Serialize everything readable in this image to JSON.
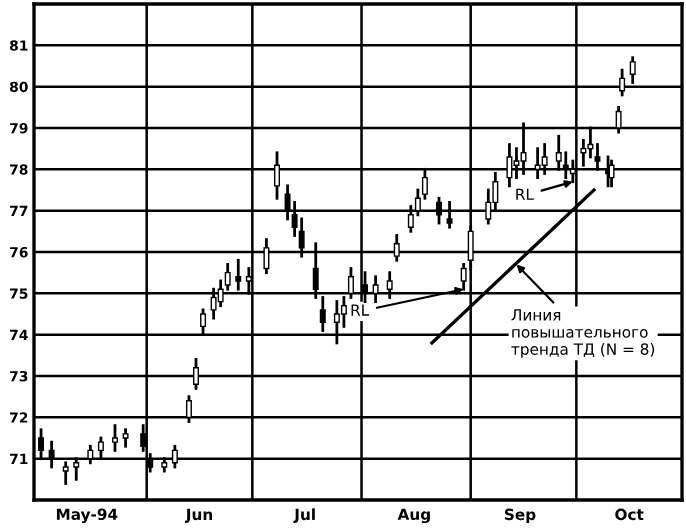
{
  "chart_data": {
    "type": "candlestick",
    "color": "#000000",
    "x": [
      "1994-05-02",
      "1994-05-05",
      "1994-05-09",
      "1994-05-12",
      "1994-05-16",
      "1994-05-19",
      "1994-05-23",
      "1994-05-26",
      "1994-05-31",
      "1994-06-02",
      "1994-06-06",
      "1994-06-09",
      "1994-06-13",
      "1994-06-15",
      "1994-06-17",
      "1994-06-20",
      "1994-06-22",
      "1994-06-24",
      "1994-06-27",
      "1994-06-30",
      "1994-07-05",
      "1994-07-08",
      "1994-07-11",
      "1994-07-13",
      "1994-07-15",
      "1994-07-19",
      "1994-07-21",
      "1994-07-25",
      "1994-07-27",
      "1994-07-29",
      "1994-08-02",
      "1994-08-05",
      "1994-08-09",
      "1994-08-11",
      "1994-08-15",
      "1994-08-17",
      "1994-08-19",
      "1994-08-23",
      "1994-08-26",
      "1994-08-30",
      "1994-09-01",
      "1994-09-06",
      "1994-09-08",
      "1994-09-12",
      "1994-09-14",
      "1994-09-16",
      "1994-09-20",
      "1994-09-22",
      "1994-09-26",
      "1994-09-28",
      "1994-09-30",
      "1994-10-03",
      "1994-10-05",
      "1994-10-07",
      "1994-10-10",
      "1994-10-11",
      "1994-10-13",
      "1994-10-14",
      "1994-10-17"
    ],
    "ohlc": [
      [
        71.5,
        71.7,
        71.0,
        71.2
      ],
      [
        71.2,
        71.4,
        70.8,
        71.0
      ],
      [
        70.7,
        70.9,
        70.4,
        70.8
      ],
      [
        70.8,
        71.0,
        70.5,
        70.9
      ],
      [
        71.0,
        71.3,
        70.9,
        71.2
      ],
      [
        71.2,
        71.5,
        71.0,
        71.4
      ],
      [
        71.4,
        71.8,
        71.2,
        71.5
      ],
      [
        71.5,
        71.7,
        71.3,
        71.6
      ],
      [
        71.6,
        71.8,
        71.2,
        71.3
      ],
      [
        71.0,
        71.1,
        70.7,
        70.8
      ],
      [
        70.8,
        71.0,
        70.7,
        70.9
      ],
      [
        70.9,
        71.3,
        70.8,
        71.2
      ],
      [
        72.0,
        72.5,
        71.9,
        72.4
      ],
      [
        72.8,
        73.4,
        72.7,
        73.2
      ],
      [
        74.2,
        74.6,
        74.0,
        74.5
      ],
      [
        74.6,
        75.1,
        74.4,
        74.9
      ],
      [
        74.8,
        75.3,
        74.7,
        75.1
      ],
      [
        75.2,
        75.7,
        75.1,
        75.5
      ],
      [
        75.4,
        75.8,
        75.1,
        75.3
      ],
      [
        75.3,
        75.6,
        75.0,
        75.4
      ],
      [
        75.6,
        76.3,
        75.5,
        76.1
      ],
      [
        77.6,
        78.4,
        77.3,
        78.1
      ],
      [
        77.4,
        77.6,
        76.8,
        77.0
      ],
      [
        76.9,
        77.2,
        76.4,
        76.6
      ],
      [
        76.5,
        76.8,
        75.9,
        76.1
      ],
      [
        75.6,
        76.2,
        74.9,
        75.1
      ],
      [
        74.6,
        74.9,
        74.1,
        74.3
      ],
      [
        74.3,
        74.8,
        73.8,
        74.5
      ],
      [
        74.5,
        74.9,
        74.2,
        74.7
      ],
      [
        75.0,
        75.6,
        74.9,
        75.4
      ],
      [
        75.2,
        75.5,
        74.8,
        75.0
      ],
      [
        75.0,
        75.4,
        74.8,
        75.2
      ],
      [
        75.1,
        75.5,
        74.9,
        75.3
      ],
      [
        75.9,
        76.4,
        75.8,
        76.2
      ],
      [
        76.6,
        77.1,
        76.5,
        76.9
      ],
      [
        77.0,
        77.5,
        76.9,
        77.3
      ],
      [
        77.4,
        78.0,
        77.3,
        77.8
      ],
      [
        77.2,
        77.3,
        76.7,
        76.9
      ],
      [
        76.8,
        77.2,
        76.6,
        76.7
      ],
      [
        75.3,
        75.7,
        75.1,
        75.6
      ],
      [
        75.8,
        76.6,
        75.6,
        76.5
      ],
      [
        76.8,
        77.5,
        76.7,
        77.2
      ],
      [
        77.2,
        77.9,
        77.0,
        77.7
      ],
      [
        77.8,
        78.6,
        77.6,
        78.3
      ],
      [
        78.1,
        78.5,
        77.8,
        78.2
      ],
      [
        78.2,
        79.1,
        77.9,
        78.4
      ],
      [
        78.0,
        78.5,
        77.8,
        78.1
      ],
      [
        78.1,
        78.6,
        77.9,
        78.3
      ],
      [
        78.2,
        78.8,
        78.0,
        78.4
      ],
      [
        78.1,
        78.4,
        77.8,
        78.0
      ],
      [
        77.9,
        78.2,
        77.7,
        78.0
      ],
      [
        78.4,
        78.7,
        78.1,
        78.5
      ],
      [
        78.5,
        79.0,
        78.3,
        78.6
      ],
      [
        78.3,
        78.6,
        78.0,
        78.2
      ],
      [
        78.0,
        78.3,
        77.6,
        77.9
      ],
      [
        77.8,
        78.2,
        77.6,
        78.1
      ],
      [
        79.0,
        79.5,
        78.9,
        79.4
      ],
      [
        79.9,
        80.4,
        79.8,
        80.2
      ],
      [
        80.3,
        80.7,
        80.1,
        80.6
      ]
    ],
    "series": [
      {
        "type": "line",
        "color": "#000000",
        "x": [
          "1994-08-21",
          "1994-10-06"
        ],
        "values": [
          73.8,
          77.5
        ]
      }
    ],
    "annotations": [
      {
        "text": "Линия\nповышательного\nтренда ТД (N = 8)",
        "x": "1994-09-14",
        "y": 75.7
      },
      {
        "text": "RL",
        "x": "1994-08-30",
        "y": 75.1
      },
      {
        "text": "RL",
        "x": "1994-09-30",
        "y": 77.7
      }
    ],
    "xlim": [
      "1994-04-30",
      "1994-10-31"
    ],
    "xticks": [
      {
        "value": "1994-06-01",
        "label": null
      },
      {
        "value": "1994-07-01",
        "label": null
      },
      {
        "value": "1994-08-01",
        "label": null
      },
      {
        "value": "1994-09-01",
        "label": null
      },
      {
        "value": "1994-10-01",
        "label": null
      },
      {
        "value": "1994-05-15",
        "label": "May-94"
      },
      {
        "value": "1994-06-16",
        "label": "Jun"
      },
      {
        "value": "1994-07-16",
        "label": "Jul"
      },
      {
        "value": "1994-08-16",
        "label": "Aug"
      },
      {
        "value": "1994-09-15",
        "label": "Sep"
      },
      {
        "value": "1994-10-16",
        "label": "Oct"
      }
    ],
    "ylim": [
      70,
      82
    ],
    "yticks": [
      71,
      72,
      73,
      74,
      75,
      76,
      77,
      78,
      79,
      80,
      81
    ],
    "grid": true
  }
}
